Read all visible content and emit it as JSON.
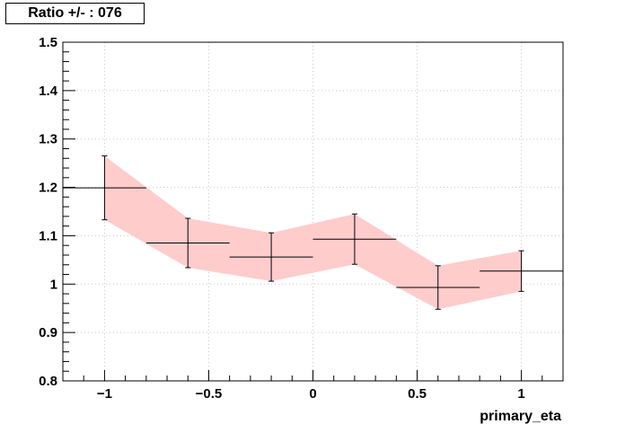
{
  "chart_data": {
    "type": "scatter",
    "title": "Ratio +/- : 076",
    "xlabel": "primary_eta",
    "ylabel": "",
    "xlim": [
      -1.2,
      1.2
    ],
    "ylim": [
      0.8,
      1.5
    ],
    "grid": true,
    "x_ticks": [
      "−1",
      "−0.5",
      "0",
      "0.5",
      "1"
    ],
    "x_tick_values": [
      -1,
      -0.5,
      0,
      0.5,
      1
    ],
    "y_ticks": [
      "0.8",
      "0.9",
      "1",
      "1.1",
      "1.2",
      "1.3",
      "1.4",
      "1.5"
    ],
    "y_tick_values": [
      0.8,
      0.9,
      1.0,
      1.1,
      1.2,
      1.3,
      1.4,
      1.5
    ],
    "points": [
      {
        "x": -1.0,
        "y": 1.199,
        "xerr": 0.2,
        "ylow": 1.133,
        "yhigh": 1.265
      },
      {
        "x": -0.6,
        "y": 1.085,
        "xerr": 0.2,
        "ylow": 1.034,
        "yhigh": 1.136
      },
      {
        "x": -0.2,
        "y": 1.056,
        "xerr": 0.2,
        "ylow": 1.006,
        "yhigh": 1.106
      },
      {
        "x": 0.2,
        "y": 1.093,
        "xerr": 0.2,
        "ylow": 1.041,
        "yhigh": 1.145
      },
      {
        "x": 0.6,
        "y": 0.993,
        "xerr": 0.2,
        "ylow": 0.948,
        "yhigh": 1.038
      },
      {
        "x": 1.0,
        "y": 1.027,
        "xerr": 0.2,
        "ylow": 0.985,
        "yhigh": 1.069
      }
    ],
    "band_color": "#ffcccc",
    "marker_color": "#000000"
  }
}
